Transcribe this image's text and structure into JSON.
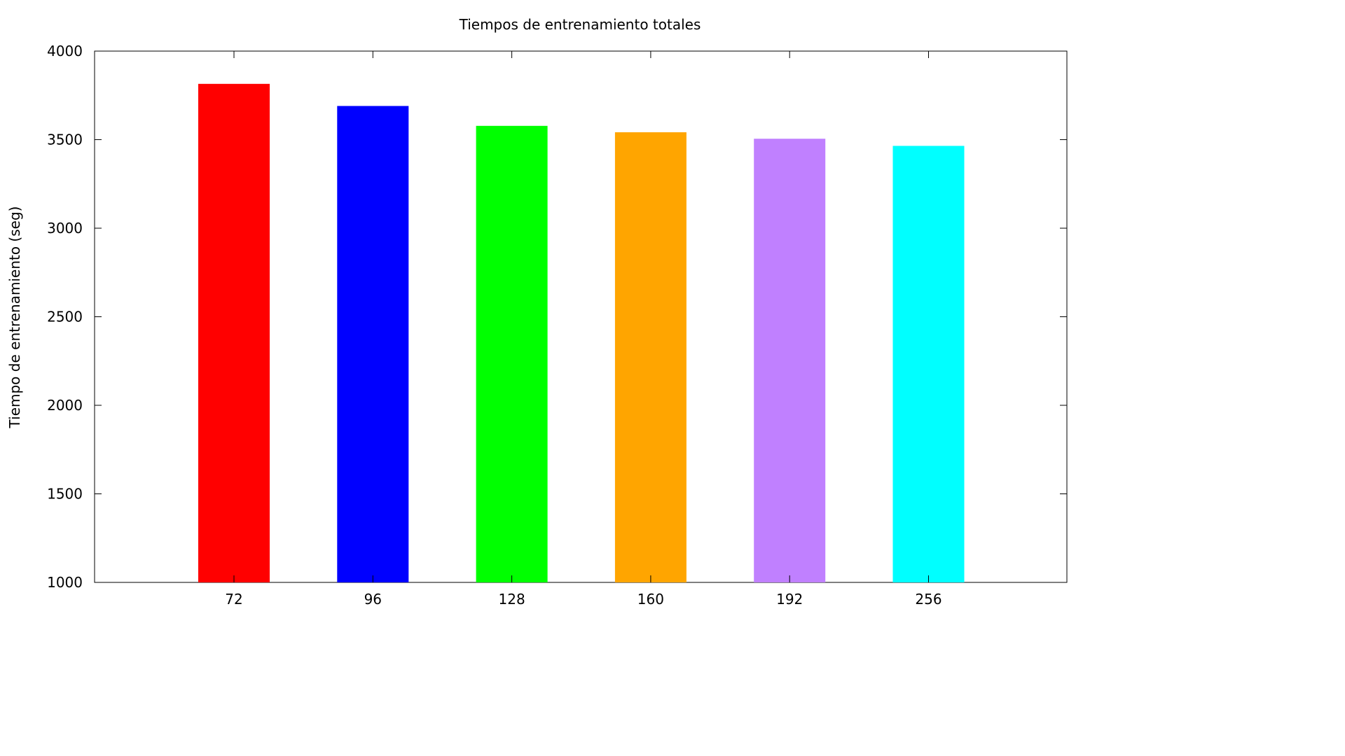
{
  "chart_data": {
    "type": "bar",
    "title": "Tiempos de entrenamiento totales",
    "xlabel": "",
    "ylabel": "Tiempo de entrenamiento (seg)",
    "categories": [
      "72",
      "96",
      "128",
      "160",
      "192",
      "256"
    ],
    "values": [
      3815,
      3690,
      3578,
      3542,
      3505,
      3465
    ],
    "colors": [
      "#ff0000",
      "#0000ff",
      "#00ff00",
      "#ffa500",
      "#c080ff",
      "#00ffff"
    ],
    "ylim": [
      1000,
      4000
    ],
    "yticks": [
      "1000",
      "1500",
      "2000",
      "2500",
      "3000",
      "3500",
      "4000"
    ],
    "grid": false,
    "legend": "none"
  }
}
